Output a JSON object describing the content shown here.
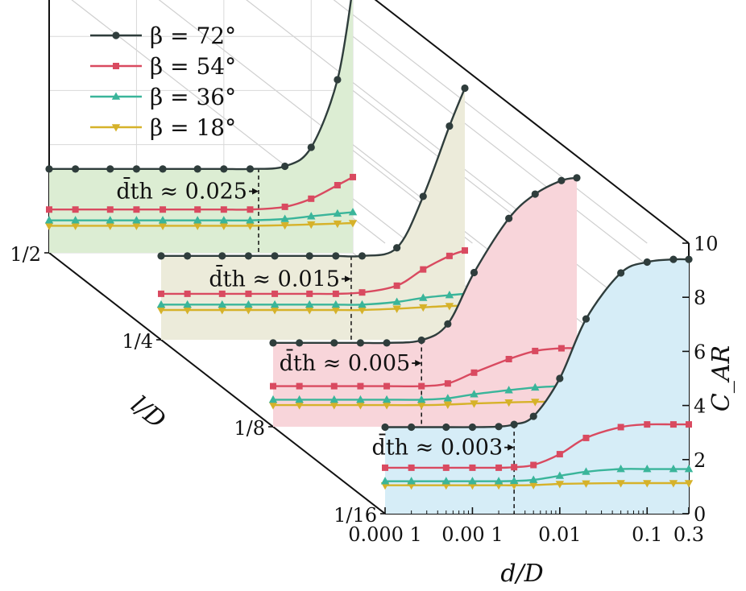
{
  "chart_data": {
    "type": "line",
    "xlabel": "d/D",
    "ylabel": "C_AR",
    "zlabel": "l/D",
    "xscale": "log",
    "xlim": [
      0.0001,
      0.3
    ],
    "ylim": [
      0,
      10
    ],
    "x_tick_labels": [
      "0.000 1",
      "0.00 1",
      "0.01",
      "0.1",
      "0.3"
    ],
    "x_ticks": [
      0.0001,
      0.001,
      0.01,
      0.1,
      0.3
    ],
    "y_ticks": [
      "0",
      "2",
      "4",
      "6",
      "8",
      "10"
    ],
    "depth_tick_labels": [
      "1/2",
      "1/4",
      "1/8",
      "1/16"
    ],
    "grid": true,
    "legend_position": "top-left",
    "colors": {
      "beta72": "#2f3d3c",
      "beta54": "#d94a60",
      "beta36": "#3ab59a",
      "beta18": "#d6b22a"
    },
    "panel_fills": [
      "#dcedd3",
      "#ecebda",
      "#f8d5da",
      "#d6edf7"
    ],
    "legend": [
      {
        "label": "β = 72°",
        "series": "beta72",
        "marker": "circle"
      },
      {
        "label": "β = 54°",
        "series": "beta54",
        "marker": "square"
      },
      {
        "label": "β = 36°",
        "series": "beta36",
        "marker": "triangle-up"
      },
      {
        "label": "β = 18°",
        "series": "beta18",
        "marker": "triangle-down"
      }
    ],
    "panels": [
      {
        "depth": "1/2",
        "annotation": "d̄th ≈ 0.025",
        "threshold": 0.025,
        "series": [
          {
            "key": "beta72",
            "label": "β = 72°",
            "x": [
              0.0001,
              0.0002,
              0.0005,
              0.001,
              0.002,
              0.005,
              0.01,
              0.02,
              0.05,
              0.1,
              0.2,
              0.3
            ],
            "y": [
              3.1,
              3.1,
              3.1,
              3.1,
              3.1,
              3.1,
              3.1,
              3.1,
              3.2,
              3.9,
              6.4,
              9.8
            ]
          },
          {
            "key": "beta54",
            "label": "β = 54°",
            "x": [
              0.0001,
              0.0002,
              0.0005,
              0.001,
              0.002,
              0.005,
              0.01,
              0.02,
              0.05,
              0.1,
              0.2,
              0.3
            ],
            "y": [
              1.6,
              1.6,
              1.6,
              1.6,
              1.6,
              1.6,
              1.6,
              1.6,
              1.7,
              2.0,
              2.5,
              2.8
            ]
          },
          {
            "key": "beta36",
            "label": "β = 36°",
            "x": [
              0.0001,
              0.0002,
              0.0005,
              0.001,
              0.002,
              0.005,
              0.01,
              0.02,
              0.05,
              0.1,
              0.2,
              0.3
            ],
            "y": [
              1.2,
              1.2,
              1.2,
              1.2,
              1.2,
              1.2,
              1.2,
              1.2,
              1.25,
              1.35,
              1.45,
              1.5
            ]
          },
          {
            "key": "beta18",
            "label": "β = 18°",
            "x": [
              0.0001,
              0.0002,
              0.0005,
              0.001,
              0.002,
              0.005,
              0.01,
              0.02,
              0.05,
              0.1,
              0.2,
              0.3
            ],
            "y": [
              1.0,
              1.0,
              1.0,
              1.0,
              1.0,
              1.0,
              1.0,
              1.0,
              1.02,
              1.05,
              1.08,
              1.1
            ]
          }
        ]
      },
      {
        "depth": "1/4",
        "annotation": "d̄th ≈ 0.015",
        "threshold": 0.015,
        "series": [
          {
            "key": "beta72",
            "label": "β = 72°",
            "x": [
              0.0001,
              0.0002,
              0.0005,
              0.001,
              0.002,
              0.005,
              0.01,
              0.02,
              0.05,
              0.1,
              0.2,
              0.3
            ],
            "y": [
              3.1,
              3.1,
              3.1,
              3.1,
              3.1,
              3.1,
              3.1,
              3.1,
              3.4,
              5.3,
              7.9,
              9.3
            ]
          },
          {
            "key": "beta54",
            "label": "β = 54°",
            "x": [
              0.0001,
              0.0002,
              0.0005,
              0.001,
              0.002,
              0.005,
              0.01,
              0.02,
              0.05,
              0.1,
              0.2,
              0.3
            ],
            "y": [
              1.7,
              1.7,
              1.7,
              1.7,
              1.7,
              1.7,
              1.7,
              1.75,
              2.0,
              2.6,
              3.1,
              3.3
            ]
          },
          {
            "key": "beta36",
            "label": "β = 36°",
            "x": [
              0.0001,
              0.0002,
              0.0005,
              0.001,
              0.002,
              0.005,
              0.01,
              0.02,
              0.05,
              0.1,
              0.2,
              0.3
            ],
            "y": [
              1.3,
              1.3,
              1.3,
              1.3,
              1.3,
              1.3,
              1.3,
              1.3,
              1.4,
              1.55,
              1.65,
              1.7
            ]
          },
          {
            "key": "beta18",
            "label": "β = 18°",
            "x": [
              0.0001,
              0.0002,
              0.0005,
              0.001,
              0.002,
              0.005,
              0.01,
              0.02,
              0.05,
              0.1,
              0.2,
              0.3
            ],
            "y": [
              1.1,
              1.1,
              1.1,
              1.1,
              1.1,
              1.1,
              1.1,
              1.1,
              1.15,
              1.2,
              1.25,
              1.25
            ]
          }
        ]
      },
      {
        "depth": "1/8",
        "annotation": "d̄th ≈ 0.005",
        "threshold": 0.005,
        "series": [
          {
            "key": "beta72",
            "label": "β = 72°",
            "x": [
              0.0001,
              0.0002,
              0.0005,
              0.001,
              0.002,
              0.005,
              0.01,
              0.02,
              0.05,
              0.1,
              0.2,
              0.3
            ],
            "y": [
              3.1,
              3.1,
              3.1,
              3.1,
              3.1,
              3.2,
              3.8,
              5.7,
              7.7,
              8.6,
              9.1,
              9.2
            ]
          },
          {
            "key": "beta54",
            "label": "β = 54°",
            "x": [
              0.0001,
              0.0002,
              0.0005,
              0.001,
              0.002,
              0.005,
              0.01,
              0.02,
              0.05,
              0.1,
              0.2,
              0.3
            ],
            "y": [
              1.5,
              1.5,
              1.5,
              1.5,
              1.5,
              1.5,
              1.6,
              2.0,
              2.5,
              2.8,
              2.9,
              2.9
            ]
          },
          {
            "key": "beta36",
            "label": "β = 36°",
            "x": [
              0.0001,
              0.0002,
              0.0005,
              0.001,
              0.002,
              0.005,
              0.01,
              0.02,
              0.05,
              0.1,
              0.2,
              0.3
            ],
            "y": [
              1.0,
              1.0,
              1.0,
              1.0,
              1.0,
              1.0,
              1.05,
              1.2,
              1.35,
              1.45,
              1.5,
              1.5
            ]
          },
          {
            "key": "beta18",
            "label": "β = 18°",
            "x": [
              0.0001,
              0.0002,
              0.0005,
              0.001,
              0.002,
              0.005,
              0.01,
              0.02,
              0.05,
              0.1,
              0.2,
              0.3
            ],
            "y": [
              0.8,
              0.8,
              0.8,
              0.8,
              0.8,
              0.8,
              0.82,
              0.86,
              0.9,
              0.92,
              0.93,
              0.93
            ]
          }
        ]
      },
      {
        "depth": "1/16",
        "annotation": "d̄th ≈ 0.003",
        "threshold": 0.003,
        "series": [
          {
            "key": "beta72",
            "label": "β = 72°",
            "x": [
              0.0001,
              0.0002,
              0.0005,
              0.001,
              0.002,
              0.003,
              0.005,
              0.01,
              0.02,
              0.05,
              0.1,
              0.2,
              0.3
            ],
            "y": [
              3.2,
              3.2,
              3.2,
              3.2,
              3.22,
              3.3,
              3.6,
              5.0,
              7.2,
              8.9,
              9.3,
              9.4,
              9.4
            ]
          },
          {
            "key": "beta54",
            "label": "β = 54°",
            "x": [
              0.0001,
              0.0002,
              0.0005,
              0.001,
              0.002,
              0.003,
              0.005,
              0.01,
              0.02,
              0.05,
              0.1,
              0.2,
              0.3
            ],
            "y": [
              1.7,
              1.7,
              1.7,
              1.7,
              1.7,
              1.72,
              1.8,
              2.2,
              2.8,
              3.2,
              3.3,
              3.3,
              3.3
            ]
          },
          {
            "key": "beta36",
            "label": "β = 36°",
            "x": [
              0.0001,
              0.0002,
              0.0005,
              0.001,
              0.002,
              0.003,
              0.005,
              0.01,
              0.02,
              0.05,
              0.1,
              0.2,
              0.3
            ],
            "y": [
              1.2,
              1.2,
              1.2,
              1.2,
              1.2,
              1.21,
              1.25,
              1.4,
              1.55,
              1.65,
              1.65,
              1.65,
              1.65
            ]
          },
          {
            "key": "beta18",
            "label": "β = 18°",
            "x": [
              0.0001,
              0.0002,
              0.0005,
              0.001,
              0.002,
              0.003,
              0.005,
              0.01,
              0.02,
              0.05,
              0.1,
              0.2,
              0.3
            ],
            "y": [
              1.05,
              1.05,
              1.05,
              1.05,
              1.05,
              1.05,
              1.06,
              1.1,
              1.12,
              1.13,
              1.13,
              1.13,
              1.13
            ]
          }
        ]
      }
    ]
  }
}
